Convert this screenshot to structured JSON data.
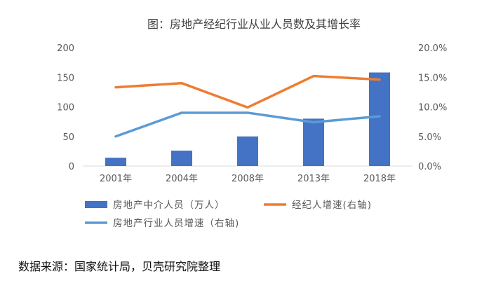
{
  "chart_data": {
    "type": "bar+line",
    "title": "图：房地产经纪行业从业人员数及其增长率",
    "categories": [
      "2001年",
      "2004年",
      "2008年",
      "2013年",
      "2018年"
    ],
    "left_axis": {
      "ylim": [
        0,
        200
      ],
      "ticks": [
        "0",
        "50",
        "100",
        "150",
        "200"
      ]
    },
    "right_axis": {
      "ylim": [
        0,
        20
      ],
      "ticks": [
        "0.0%",
        "5.0%",
        "10.0%",
        "15.0%",
        "20.0%"
      ]
    },
    "series": [
      {
        "name": "房地产中介人员（万人）",
        "kind": "bar",
        "axis": "left",
        "color": "#4472c4",
        "values": [
          14,
          26,
          50,
          80,
          158
        ]
      },
      {
        "name": "经纪人增速(右轴)",
        "kind": "line",
        "axis": "right",
        "color": "#ed7d31",
        "values": [
          13.3,
          14.0,
          9.9,
          15.2,
          14.6
        ]
      },
      {
        "name": "房地产行业人员增速（右轴)",
        "kind": "line",
        "axis": "right",
        "color": "#5b9bd5",
        "values": [
          5.0,
          9.0,
          9.0,
          7.4,
          8.4
        ]
      }
    ],
    "grid": false,
    "legend": "bottom"
  },
  "source_text": "数据来源：国家统计局，贝壳研究院整理"
}
